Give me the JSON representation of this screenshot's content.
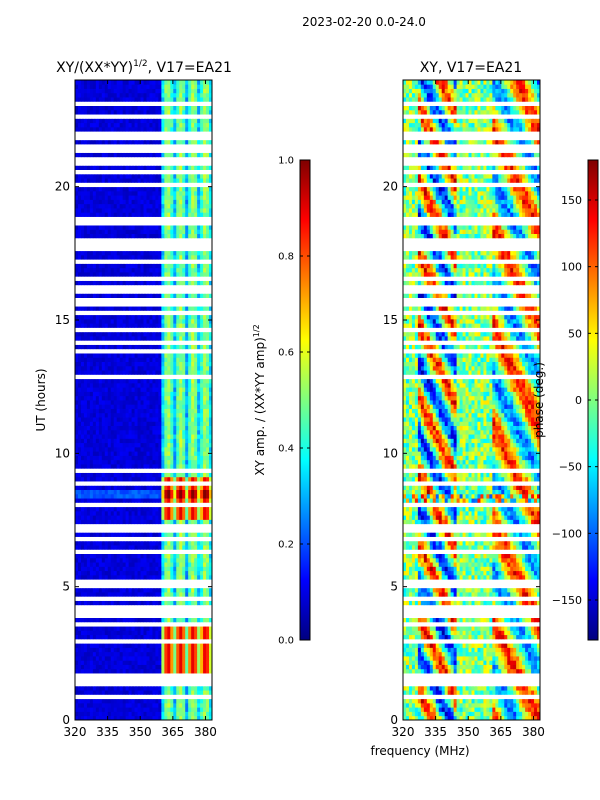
{
  "suptitle": "2023-02-20 0.0-24.0",
  "shared_xlabel": "frequency (MHz)",
  "colormap": [
    "#00007f",
    "#0000ff",
    "#00bfff",
    "#7fff7f",
    "#ffdf00",
    "#ff3f00",
    "#7f0000"
  ],
  "chart_data": [
    {
      "type": "heatmap",
      "title_main": "XY/(XX*YY)",
      "title_exp": "1/2",
      "title_suffix": ", V17=EA21",
      "xlabel": "",
      "ylabel": "UT (hours)",
      "xlim": [
        320,
        383
      ],
      "ylim": [
        0,
        24
      ],
      "xticks": [
        320,
        335,
        350,
        365,
        380
      ],
      "yticks": [
        0,
        5,
        10,
        15,
        20
      ],
      "colorbar": {
        "label_main": "XY amp. / (XX*YY amp)",
        "label_exp": "1/2",
        "range": [
          0.0,
          1.0
        ],
        "ticks": [
          "0.0",
          "0.2",
          "0.4",
          "0.6",
          "0.8",
          "1.0"
        ]
      },
      "description": "Mostly low normalized amplitude (~0.1) across 320-360 MHz; higher values (0.3-0.6) in bands near 361-383 MHz, with strong features (~0.8-0.9) near 361-380 MHz around 2-3.5 h and 7.5-9 h UT; white rows are flagged/missing times."
    },
    {
      "type": "heatmap",
      "title_main": "XY, V17=EA21",
      "title_exp": "",
      "title_suffix": "",
      "xlabel": "",
      "ylabel": "",
      "xlim": [
        320,
        383
      ],
      "ylim": [
        0,
        24
      ],
      "xticks": [
        320,
        335,
        350,
        365,
        380
      ],
      "yticks": [
        0,
        5,
        10,
        15,
        20
      ],
      "colorbar": {
        "label_main": "phase (deg.)",
        "label_exp": "",
        "range": [
          -180,
          180
        ],
        "ticks": [
          "−150",
          "−100",
          "−50",
          "0",
          "50",
          "100",
          "150"
        ]
      },
      "description": "Noisy phase spanning -180 to 180 degrees; coherent structure near 330-345 MHz and a distinct region above ~361 MHz; flagged times shown as white rows."
    }
  ],
  "flagged_hours": [
    0.95,
    1.3,
    1.55,
    1.75,
    2.4,
    2.95,
    3.55,
    3.65,
    3.95,
    4.1,
    4.25,
    4.5,
    5.05,
    5.25,
    6.35,
    6.85,
    7.15,
    7.35,
    8.05,
    8.85,
    9.3,
    11.85,
    12.9,
    13.8,
    14.1,
    14.25,
    14.4,
    14.6,
    15.3,
    15.55,
    15.75,
    16.05,
    16.25,
    16.5,
    17.2,
    17.45,
    17.65,
    17.8,
    17.95,
    18.4,
    18.6,
    18.85,
    20.05,
    20.5,
    20.85,
    21.05,
    21.3,
    21.55,
    21.8,
    22.05,
    22.25,
    22.55,
    22.65,
    23.1
  ]
}
